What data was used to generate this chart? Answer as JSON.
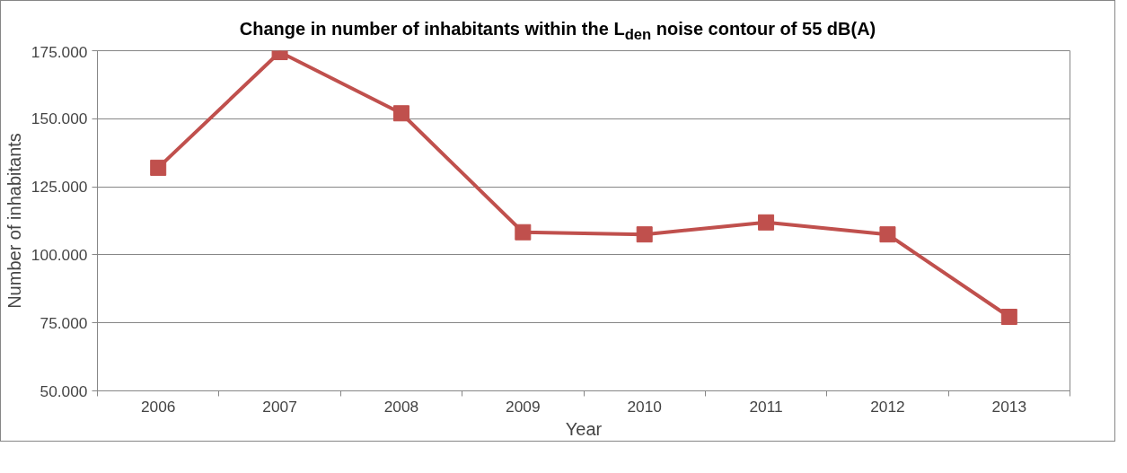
{
  "chart_data": {
    "type": "line",
    "title": "Change in number of inhabitants within the L$_{den}$ noise contour of 55 dB(A)",
    "xlabel": "Year",
    "ylabel": "Number of inhabitants",
    "categories": [
      "2006",
      "2007",
      "2008",
      "2009",
      "2010",
      "2011",
      "2012",
      "2013"
    ],
    "series": [
      {
        "color": "#c0504d",
        "values": [
          132000,
          174500,
          152000,
          108300,
          107500,
          111900,
          107500,
          77200
        ]
      }
    ],
    "ylim": [
      50000,
      175000
    ],
    "yticks": [
      {
        "value": 50000,
        "label": "50.000"
      },
      {
        "value": 75000,
        "label": "75.000"
      },
      {
        "value": 100000,
        "label": "100.000"
      },
      {
        "value": 125000,
        "label": "125.000"
      },
      {
        "value": 150000,
        "label": "150.000"
      },
      {
        "value": 175000,
        "label": "175.000"
      }
    ],
    "grid": "y",
    "marker": "square",
    "line_style": "solid"
  }
}
